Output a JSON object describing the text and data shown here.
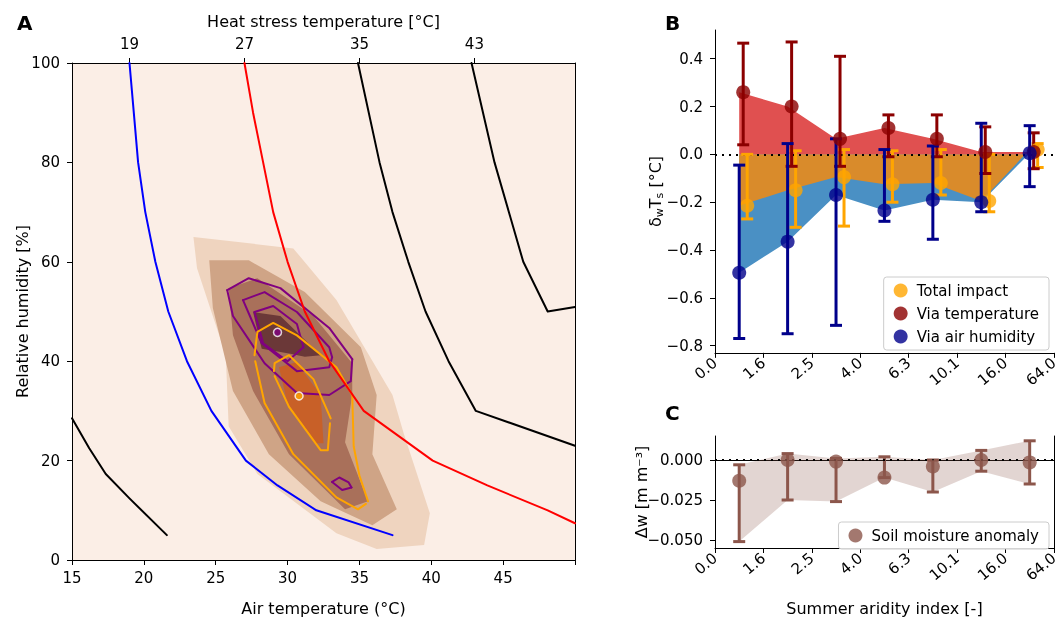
{
  "chart_data": [
    {
      "type": "line",
      "title": "A",
      "xlabel": "Air temperature (°C)",
      "ylabel": "Relative humidity [%]",
      "x2label": "Heat stress temperature [°C]",
      "xlim": [
        15,
        50
      ],
      "xticks": [
        15,
        20,
        25,
        30,
        35,
        40,
        45
      ],
      "ylim": [
        0,
        100
      ],
      "yticks": [
        0,
        20,
        40,
        60,
        80,
        100
      ],
      "x2lim": [
        15,
        50
      ],
      "x2ticks": [
        19,
        27,
        35,
        43
      ],
      "grid": false,
      "legend": false,
      "series": [
        {
          "type": "area",
          "color": "#efd4bf",
          "x": [
            23.45,
            30.4,
            33.4,
            37.3,
            38.1,
            39.9,
            39.5,
            36.2,
            33.4,
            27.9,
            25.9,
            25.7,
            23.7,
            23.45
          ],
          "values": [
            65,
            62.7,
            52.3,
            33.2,
            25.3,
            9.4,
            3,
            2.2,
            5.4,
            17.3,
            26.9,
            41.2,
            58.7,
            65
          ]
        },
        {
          "type": "area",
          "color": "#cfa486",
          "x": [
            24.55,
            27.3,
            31.2,
            35.1,
            36.2,
            35.9,
            37.6,
            35.9,
            32.3,
            28.7,
            26.2,
            24.8,
            24.55
          ],
          "values": [
            60.3,
            60.3,
            53.9,
            42.8,
            33.2,
            21.3,
            10.2,
            7,
            11.8,
            21.3,
            34,
            50.7,
            60.3
          ]
        },
        {
          "type": "area",
          "color": "#a9705a",
          "x": [
            25.9,
            27.9,
            31.8,
            34.5,
            34.5,
            34.0,
            35.6,
            34.0,
            30.1,
            27.6,
            26.2,
            25.9
          ],
          "values": [
            54.7,
            56.7,
            49.1,
            39.6,
            33.2,
            23.7,
            11.8,
            10.2,
            21.3,
            34,
            45.2,
            54.7
          ]
        },
        {
          "type": "area",
          "color": "#c86028",
          "x": [
            29.4,
            30.6,
            32.3,
            32.5,
            32.0,
            30.0,
            29.4
          ],
          "values": [
            38.8,
            39.8,
            33.2,
            23.5,
            23.5,
            31.5,
            38.8
          ]
        },
        {
          "type": "area",
          "color": "#6b3838",
          "x": [
            27.6,
            29.5,
            32.3,
            31.2,
            30.2,
            28.2,
            27.6
          ],
          "values": [
            49.9,
            49.1,
            41.2,
            40.9,
            41.5,
            42.5,
            49.9
          ]
        },
        {
          "color": "#800080",
          "marker": "none",
          "x": [
            25.8,
            27.3,
            29.5,
            32.9,
            34.5
          ],
          "values": [
            54.3,
            56.7,
            54.7,
            46.7,
            40.4
          ]
        },
        {
          "color": "#800080",
          "marker": "none",
          "x": [
            25.8,
            26.2,
            28.4,
            30.65,
            32.9,
            34.4,
            34.5
          ],
          "values": [
            54.3,
            49.1,
            39.6,
            33.6,
            33.2,
            36,
            40.4
          ]
        },
        {
          "color": "#800080",
          "marker": "none",
          "x": [
            26.9,
            28.4,
            30.65,
            32.9,
            33.1
          ],
          "values": [
            52.3,
            53.9,
            49.9,
            42.8,
            40.8
          ]
        },
        {
          "color": "#800080",
          "marker": "none",
          "x": [
            26.9,
            28.2,
            30.65,
            32.9,
            33.1
          ],
          "values": [
            52.3,
            43.6,
            38,
            38.8,
            40.8
          ]
        },
        {
          "color": "#800080",
          "marker": "none",
          "x": [
            27.7,
            29.0,
            30.65,
            31.1
          ],
          "values": [
            49.9,
            51.1,
            47.5,
            42.8
          ]
        },
        {
          "color": "#800080",
          "marker": "none",
          "x": [
            27.7,
            28.3,
            30.0,
            31.1
          ],
          "values": [
            49.9,
            43.6,
            40,
            42.8
          ]
        },
        {
          "color": "#800080",
          "marker": "none",
          "x": [
            33.1,
            33.6,
            34.25,
            34.45
          ],
          "values": [
            15.7,
            16.6,
            15.6,
            14.6
          ]
        },
        {
          "color": "#800080",
          "marker": "none",
          "x": [
            33.1,
            33.8,
            34.45
          ],
          "values": [
            15.7,
            14.1,
            14.6
          ]
        },
        {
          "color": "#ffa500",
          "marker": "none",
          "x": [
            27.7,
            27.9,
            29.0,
            30.65,
            33.4,
            34.5,
            34.6,
            35.0,
            35.6
          ],
          "values": [
            41.2,
            45.9,
            47.7,
            45.2,
            38.8,
            33.2,
            22.9,
            17,
            11.8
          ]
        },
        {
          "color": "#ffa500",
          "marker": "none",
          "x": [
            27.75,
            28.4,
            30.4,
            33.4,
            34.9,
            35.45
          ],
          "values": [
            40.0,
            31.6,
            21.3,
            12.6,
            10.2,
            11.3
          ]
        },
        {
          "color": "#ffa500",
          "marker": "none",
          "x": [
            29.05,
            29.1,
            30.1,
            31.8,
            33.0
          ],
          "values": [
            38,
            39.6,
            41.2,
            36.4,
            28.5
          ]
        },
        {
          "color": "#ffa500",
          "marker": "none",
          "x": [
            29.1,
            30.1,
            32.3,
            32.8,
            32.95
          ],
          "values": [
            37.0,
            30.8,
            22.1,
            22.1,
            27.5
          ]
        },
        {
          "color": "#0000ff",
          "marker": "none",
          "x": [
            19,
            19.3,
            19.6,
            20.1,
            20.8,
            21.7,
            23.0,
            24.7,
            27.1,
            29.3,
            32,
            37.3
          ],
          "values": [
            100,
            90,
            80,
            70,
            60,
            50,
            40,
            30,
            20,
            15,
            10,
            5
          ]
        },
        {
          "color": "#ff0000",
          "marker": "none",
          "x": [
            27,
            27.6,
            28.3,
            29.0,
            30,
            31.2,
            32.9,
            35.3,
            40.1,
            43.9,
            48.1,
            50
          ],
          "values": [
            100,
            90,
            80,
            70,
            60,
            50,
            40,
            30,
            20,
            15,
            10,
            7.4
          ]
        },
        {
          "color": "#000000",
          "marker": "none",
          "x": [
            34.9,
            36.4,
            37.3,
            38.4,
            39.6,
            41.2,
            43.1,
            50
          ],
          "values": [
            100,
            80,
            70,
            60,
            50,
            40,
            30,
            23
          ]
        },
        {
          "color": "#000000",
          "marker": "none",
          "x": [
            42.8,
            44.4,
            46.4,
            48.1,
            50
          ],
          "values": [
            100,
            80,
            60,
            50,
            50.9
          ]
        },
        {
          "color": "#000000",
          "marker": "none",
          "x": [
            15,
            16.2,
            17.35,
            19.0,
            21.6
          ],
          "values": [
            28.5,
            22.5,
            17.3,
            12.4,
            5
          ]
        },
        {
          "type": "scatter",
          "color": "#800080",
          "marker": "circle",
          "x": [
            29.3
          ],
          "values": [
            45.8
          ]
        },
        {
          "type": "scatter",
          "color": "#ffa500",
          "marker": "circle",
          "x": [
            30.8
          ],
          "values": [
            33
          ]
        }
      ]
    },
    {
      "type": "scatter",
      "title": "B",
      "ylabel": "δ$_{w}$T$_{s}$ [°C]",
      "categories": [
        "0.0",
        null,
        "1.6",
        null,
        "2.5",
        null,
        "4.0",
        null,
        "6.3",
        null,
        "10.1",
        null,
        "16.0",
        null,
        "64.0"
      ],
      "ylim": [
        -0.83,
        0.52
      ],
      "yticks": [
        {
          "value": -0.8,
          "label": "−0.8"
        },
        {
          "value": -0.6,
          "label": "−0.6"
        },
        {
          "value": -0.4,
          "label": "−0.4"
        },
        {
          "value": -0.2,
          "label": "−0.2"
        },
        {
          "value": 0,
          "label": "0.0"
        },
        {
          "value": 0.2,
          "label": "0.2"
        },
        {
          "value": 0.4,
          "label": "0.4"
        }
      ],
      "grid": false,
      "legend": "bottom right",
      "marker": "circle",
      "ref_lines": [
        {
          "axis": "y",
          "value": 0,
          "color": "#000000",
          "line_style": "dotted"
        }
      ],
      "series": [
        {
          "type": "area",
          "color": "#4a90c4",
          "marker": "none",
          "values": [
            null,
            -0.495,
            null,
            -0.365,
            null,
            -0.17,
            null,
            -0.235,
            null,
            -0.19,
            null,
            -0.2,
            null,
            0.005,
            null
          ]
        },
        {
          "type": "area",
          "color": "#d98b2b",
          "marker": "none",
          "values": [
            null,
            -0.215,
            null,
            -0.15,
            null,
            -0.095,
            null,
            -0.125,
            null,
            -0.12,
            null,
            -0.195,
            null,
            0.02,
            null
          ]
        },
        {
          "type": "area",
          "color": "#e05050",
          "marker": "none",
          "values": [
            null,
            0.26,
            null,
            0.2,
            null,
            0.065,
            null,
            0.11,
            null,
            0.065,
            null,
            0.01,
            null,
            0.01,
            null
          ]
        },
        {
          "name": "Total impact",
          "color": "#ffa500",
          "values": [
            null,
            -0.215,
            null,
            -0.15,
            null,
            -0.095,
            null,
            -0.125,
            null,
            -0.12,
            null,
            -0.195,
            null,
            0.02,
            null
          ],
          "errors": [
            null,
            [
              -0.27,
              0.0
            ],
            null,
            [
              -0.305,
              0.015
            ],
            null,
            [
              -0.3,
              0.02
            ],
            null,
            [
              -0.2,
              0.015
            ],
            null,
            [
              -0.17,
              0.02
            ],
            null,
            [
              -0.24,
              0.0
            ],
            null,
            [
              -0.055,
              0.045
            ],
            null
          ]
        },
        {
          "name": "Via temperature",
          "color": "#8b0000",
          "values": [
            null,
            0.26,
            null,
            0.2,
            null,
            0.065,
            null,
            0.11,
            null,
            0.065,
            null,
            0.01,
            null,
            0.01,
            null
          ],
          "errors": [
            null,
            [
              0.04,
              0.465
            ],
            null,
            [
              -0.05,
              0.47
            ],
            null,
            [
              -0.05,
              0.41
            ],
            null,
            [
              -0.01,
              0.165
            ],
            null,
            [
              -0.01,
              0.165
            ],
            null,
            [
              -0.08,
              0.115
            ],
            null,
            [
              -0.06,
              0.09
            ],
            null
          ]
        },
        {
          "name": "Via air humidity",
          "color": "#00008b",
          "values": [
            null,
            -0.495,
            null,
            -0.365,
            null,
            -0.17,
            null,
            -0.235,
            null,
            -0.19,
            null,
            -0.2,
            null,
            0.005,
            null
          ],
          "errors": [
            null,
            [
              -0.77,
              -0.045
            ],
            null,
            [
              -0.75,
              0.045
            ],
            null,
            [
              -0.715,
              0.065
            ],
            null,
            [
              -0.28,
              0.02
            ],
            null,
            [
              -0.355,
              0.035
            ],
            null,
            [
              -0.24,
              0.13
            ],
            null,
            [
              -0.135,
              0.12
            ],
            null
          ]
        }
      ]
    },
    {
      "type": "scatter",
      "title": "C",
      "xlabel": "Summer aridity index [-]",
      "ylabel": "Δw [m m⁻³]",
      "categories": [
        "0.0",
        null,
        "1.6",
        null,
        "2.5",
        null,
        "4.0",
        null,
        "6.3",
        null,
        "10.1",
        null,
        "16.0",
        null,
        "64.0"
      ],
      "ylim": [
        -0.055,
        0.015
      ],
      "yticks": [
        {
          "value": -0.05,
          "label": "−0.050"
        },
        {
          "value": -0.025,
          "label": "−0.025"
        },
        {
          "value": 0,
          "label": "0.000"
        }
      ],
      "grid": false,
      "legend": "bottom right",
      "marker": "circle",
      "ref_lines": [
        {
          "axis": "y",
          "value": 0,
          "color": "#000000",
          "line_style": "dotted"
        }
      ],
      "series": [
        {
          "name": "Soil moisture anomaly",
          "color": "#8c564b",
          "values": [
            null,
            -0.013,
            null,
            0.0,
            null,
            -0.001,
            null,
            -0.011,
            null,
            -0.004,
            null,
            0.0,
            null,
            -0.0015,
            null
          ],
          "errors": [
            null,
            [
              -0.051,
              -0.003
            ],
            null,
            [
              -0.025,
              0.004
            ],
            null,
            [
              -0.026,
              0.001
            ],
            null,
            [
              -0.011,
              0.002
            ],
            null,
            [
              -0.02,
              0.0
            ],
            null,
            [
              -0.007,
              0.006
            ],
            null,
            [
              -0.015,
              0.012
            ],
            null
          ],
          "lower": [
            null,
            -0.051,
            null,
            -0.025,
            null,
            -0.026,
            null,
            -0.011,
            null,
            -0.02,
            null,
            -0.007,
            null,
            -0.015,
            null
          ],
          "upper": [
            null,
            -0.003,
            null,
            0.004,
            null,
            0.001,
            null,
            0.002,
            null,
            0.0,
            null,
            0.006,
            null,
            0.012,
            null
          ]
        }
      ]
    }
  ]
}
